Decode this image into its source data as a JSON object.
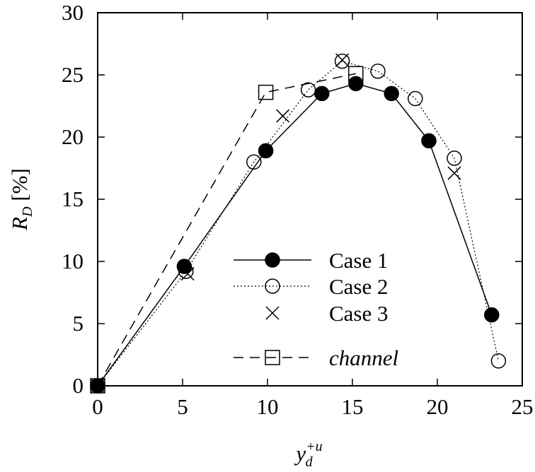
{
  "chart_data": {
    "type": "line",
    "xlabel": {
      "main": "y",
      "sup": "+u",
      "sub": "d"
    },
    "ylabel": {
      "main": "R",
      "sub": "D",
      "rest": " [%]"
    },
    "xlim": [
      0,
      25
    ],
    "ylim": [
      0,
      30
    ],
    "xticks": [
      "0",
      "5",
      "10",
      "15",
      "20",
      "25"
    ],
    "yticks": [
      "0",
      "5",
      "10",
      "15",
      "20",
      "25",
      "30"
    ],
    "grid": false,
    "legend_position": "center-right",
    "series": [
      {
        "name": "Case 1",
        "marker": "filled-circle",
        "line": "solid",
        "x": [
          0,
          5.1,
          9.9,
          13.2,
          15.2,
          17.3,
          19.5,
          23.2
        ],
        "y": [
          0,
          9.6,
          18.9,
          23.5,
          24.3,
          23.5,
          19.7,
          5.7
        ]
      },
      {
        "name": "Case 2",
        "marker": "open-circle",
        "line": "dotted",
        "x": [
          0,
          5.2,
          9.2,
          12.4,
          14.4,
          16.5,
          18.7,
          21.0,
          23.6
        ],
        "y": [
          0,
          9.2,
          18.0,
          23.8,
          26.1,
          25.3,
          23.1,
          18.3,
          2.0
        ]
      },
      {
        "name": "Case 3",
        "marker": "x",
        "line": "none",
        "x": [
          0,
          5.3,
          10.9,
          14.4,
          21.0
        ],
        "y": [
          0,
          9.0,
          21.7,
          26.2,
          17.1
        ]
      },
      {
        "name": "channel",
        "marker": "open-square",
        "line": "dashed",
        "x": [
          0,
          9.9,
          15.2
        ],
        "y": [
          0,
          23.6,
          25.1
        ]
      }
    ]
  }
}
